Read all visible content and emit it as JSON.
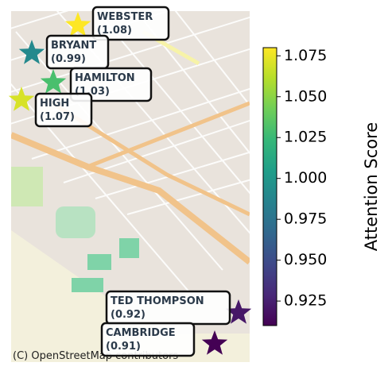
{
  "map": {
    "markers": [
      {
        "name": "WEBSTER",
        "value": 1.08,
        "value_label": "(1.08)"
      },
      {
        "name": "BRYANT",
        "value": 0.99,
        "value_label": "(0.99)"
      },
      {
        "name": "HAMILTON",
        "value": 1.03,
        "value_label": "(1.03)"
      },
      {
        "name": "HIGH",
        "value": 1.07,
        "value_label": "(1.07)"
      },
      {
        "name": "TED THOMPSON",
        "value": 0.92,
        "value_label": "(0.92)"
      },
      {
        "name": "CAMBRIDGE",
        "value": 0.91,
        "value_label": "(0.91)"
      }
    ],
    "attribution": "(C) OpenStreetMap contributors",
    "colorbar": {
      "label": "Attention Score",
      "colormap": "viridis",
      "clim": [
        0.91,
        1.08
      ],
      "ticks": [
        0.925,
        {
          "value": 0.95,
          "label": "0.950"
        },
        0.975,
        {
          "value": 1,
          "label": "1.000"
        },
        1.025,
        {
          "value": 1.05,
          "label": "1.050"
        },
        1.075
      ]
    }
  }
}
